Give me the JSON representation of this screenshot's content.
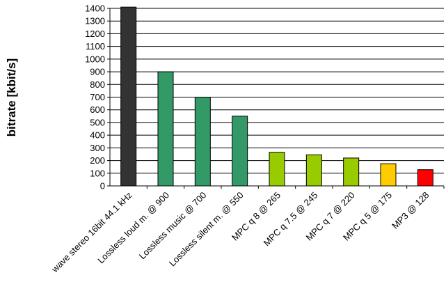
{
  "chart_data": {
    "type": "bar",
    "title": "",
    "xlabel": "",
    "ylabel": "bitrate [kbit/s]",
    "ylim": [
      0,
      1400
    ],
    "yticks": [
      0,
      100,
      200,
      300,
      400,
      500,
      600,
      700,
      800,
      900,
      1000,
      1100,
      1200,
      1300,
      1400
    ],
    "grid": "horizontal",
    "legend": "none",
    "categories": [
      "wave stereo 16bit 44.1 kHz",
      "Lossless loud m. @ 900",
      "Lossless music @ 700",
      "Lossless silent m. @ 550",
      "MPC q 8 @ 265",
      "MPC q 7.5 @ 245",
      "MPC q 7 @ 220",
      "MPC q 5 @ 175",
      "MP3 @ 128"
    ],
    "values": [
      1411,
      900,
      700,
      550,
      265,
      245,
      220,
      175,
      128
    ],
    "colors": [
      "#333333",
      "#339966",
      "#339966",
      "#339966",
      "#99cc00",
      "#99cc00",
      "#99cc00",
      "#ffcc00",
      "#ff0000"
    ]
  }
}
